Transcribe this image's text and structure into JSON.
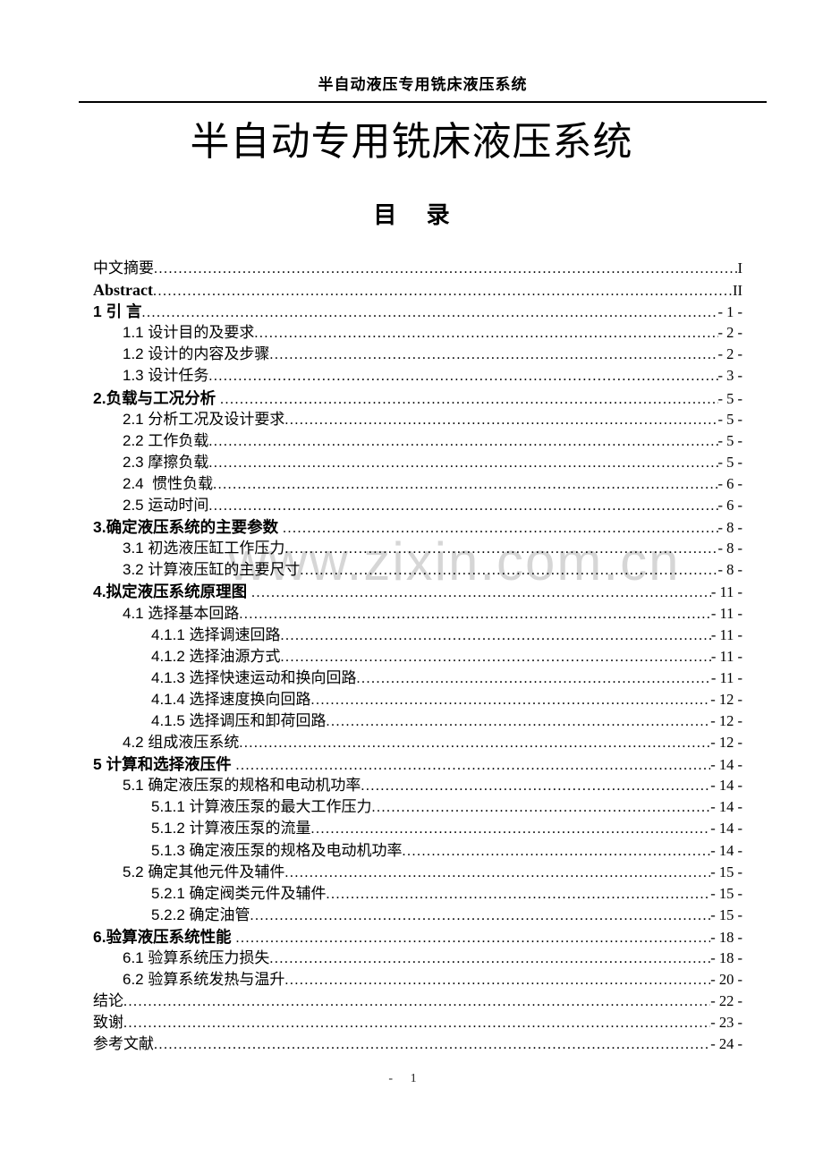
{
  "header": {
    "running_title": "半自动液压专用铣床液压系统"
  },
  "title": "半自动专用铣床液压系统",
  "watermark": "www.zixin.com.cn",
  "footer": {
    "page_label": "- 1"
  },
  "toc": {
    "heading": "目　 录",
    "entries": [
      {
        "label": "中文摘要",
        "page": "I",
        "level": 0,
        "bold": false
      },
      {
        "label": "Abstract",
        "page": "II",
        "level": 0,
        "bold": true
      },
      {
        "label": "1 引 言",
        "page": "- 1 -",
        "level": 0,
        "bold": true
      },
      {
        "label": "1.1 设计目的及要求",
        "page": "- 2 -",
        "level": 1,
        "bold": false
      },
      {
        "label": "1.2 设计的内容及步骤",
        "page": "- 2 -",
        "level": 1,
        "bold": false
      },
      {
        "label": "1.3 设计任务",
        "page": "- 3 -",
        "level": 1,
        "bold": false
      },
      {
        "label": "2.负载与工况分析 ",
        "page": "- 5 -",
        "level": 0,
        "bold": true
      },
      {
        "label": "2.1 分析工况及设计要求",
        "page": "- 5 -",
        "level": 1,
        "bold": false
      },
      {
        "label": "2.2 工作负载",
        "page": "- 5 -",
        "level": 1,
        "bold": false
      },
      {
        "label": "2.3 摩擦负载",
        "page": "- 5 -",
        "level": 1,
        "bold": false
      },
      {
        "label": "2.4  惯性负载",
        "page": "- 6 -",
        "level": 1,
        "bold": false
      },
      {
        "label": "2.5 运动时间",
        "page": "- 6 -",
        "level": 1,
        "bold": false
      },
      {
        "label": "3.确定液压系统的主要参数 ",
        "page": "- 8 -",
        "level": 0,
        "bold": true
      },
      {
        "label": "3.1 初选液压缸工作压力",
        "page": "- 8 -",
        "level": 1,
        "bold": false
      },
      {
        "label": "3.2 计算液压缸的主要尺寸",
        "page": "- 8 -",
        "level": 1,
        "bold": false
      },
      {
        "label": "4.拟定液压系统原理图 ",
        "page": "- 11 -",
        "level": 0,
        "bold": true
      },
      {
        "label": "4.1 选择基本回路",
        "page": "- 11 -",
        "level": 1,
        "bold": false
      },
      {
        "label": "4.1.1 选择调速回路",
        "page": "- 11 -",
        "level": 2,
        "bold": false
      },
      {
        "label": "4.1.2 选择油源方式",
        "page": "- 11 -",
        "level": 2,
        "bold": false
      },
      {
        "label": "4.1.3 选择快速运动和换向回路",
        "page": "- 11 -",
        "level": 2,
        "bold": false
      },
      {
        "label": "4.1.4 选择速度换向回路",
        "page": "- 12 -",
        "level": 2,
        "bold": false
      },
      {
        "label": "4.1.5 选择调压和卸荷回路",
        "page": "- 12 -",
        "level": 2,
        "bold": false
      },
      {
        "label": "4.2 组成液压系统",
        "page": "- 12 -",
        "level": 1,
        "bold": false
      },
      {
        "label": "5 计算和选择液压件 ",
        "page": "- 14 -",
        "level": 0,
        "bold": true
      },
      {
        "label": "5.1 确定液压泵的规格和电动机功率",
        "page": "- 14 -",
        "level": 1,
        "bold": false
      },
      {
        "label": "5.1.1 计算液压泵的最大工作压力",
        "page": "- 14 -",
        "level": 2,
        "bold": false
      },
      {
        "label": "5.1.2 计算液压泵的流量",
        "page": "- 14 -",
        "level": 2,
        "bold": false
      },
      {
        "label": "5.1.3 确定液压泵的规格及电动机功率",
        "page": "- 14 -",
        "level": 2,
        "bold": false
      },
      {
        "label": "5.2 确定其他元件及辅件",
        "page": "- 15 -",
        "level": 1,
        "bold": false
      },
      {
        "label": "5.2.1 确定阀类元件及辅件",
        "page": "- 15 -",
        "level": 2,
        "bold": false
      },
      {
        "label": "5.2.2 确定油管",
        "page": "- 15 -",
        "level": 2,
        "bold": false
      },
      {
        "label": "6.验算液压系统性能 ",
        "page": "- 18 -",
        "level": 0,
        "bold": true
      },
      {
        "label": "6.1 验算系统压力损失",
        "page": "- 18 -",
        "level": 1,
        "bold": false
      },
      {
        "label": "6.2 验算系统发热与温升",
        "page": "- 20 -",
        "level": 1,
        "bold": false
      },
      {
        "label": "结论",
        "page": "- 22 -",
        "level": 0,
        "bold": false
      },
      {
        "label": "致谢",
        "page": "- 23 -",
        "level": 0,
        "bold": false
      },
      {
        "label": "参考文献",
        "page": "- 24 -",
        "level": 0,
        "bold": false
      }
    ]
  }
}
